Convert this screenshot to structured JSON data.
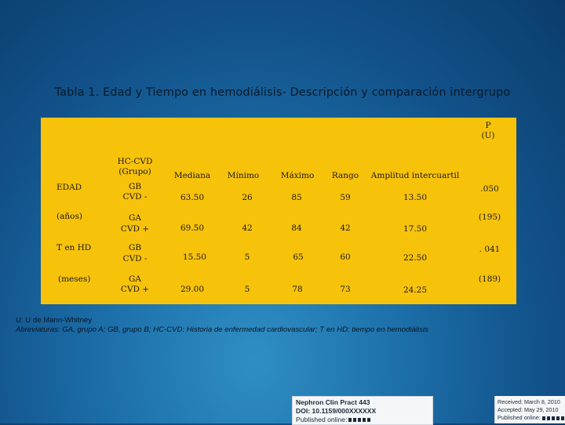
{
  "title": "Tabla 1. Edad y Tiempo en hemodiálisis- Descripción y comparación intergrupo",
  "table": {
    "p_header": [
      "P",
      "(U)"
    ],
    "group_header": [
      "HC-CVD",
      "(Grupo)"
    ],
    "columns": [
      "Mediana",
      "Mínimo",
      "Máximo",
      "Rango",
      "Amplitud intercuartil"
    ],
    "rows": [
      {
        "label": "EDAD",
        "group": [
          "GB",
          "CVD -"
        ],
        "mediana": "63.50",
        "minimo": "26",
        "maximo": "85",
        "rango": "59",
        "amplitud": "13.50",
        "p": ".050"
      },
      {
        "label": "(años)",
        "group": [
          "GA",
          "CVD +"
        ],
        "mediana": "69.50",
        "minimo": "42",
        "maximo": "84",
        "rango": "42",
        "amplitud": "17.50",
        "p": "(195)"
      },
      {
        "label": "T en HD",
        "group": [
          "GB",
          "CVD -"
        ],
        "mediana": "15.50",
        "minimo": "5",
        "maximo": "65",
        "rango": "60",
        "amplitud": "22.50",
        "p": ". 041"
      },
      {
        "label": "(meses)",
        "group": [
          "GA",
          "CVD +"
        ],
        "mediana": "29.00",
        "minimo": "5",
        "maximo": "78",
        "rango": "73",
        "amplitud": "24.25",
        "p": "(189)"
      }
    ]
  },
  "footnotes": {
    "line1": "U: U de Mann-Whitney",
    "line2": "Abreviaturas: GA, grupo A; GB, grupo B; HC-CVD: Historia de enfermedad cardiovascular; T en HD: tiempo en hemodiálisis"
  },
  "reference": {
    "journal": "Nephron Clin Pract 443",
    "doi": "DOI: 10.1159/000XXXXXX",
    "published": "Published online:"
  },
  "dates": {
    "received": "Received: March 8, 2010",
    "accepted": "Accepted: May 29, 2010",
    "published": "Published online:"
  }
}
